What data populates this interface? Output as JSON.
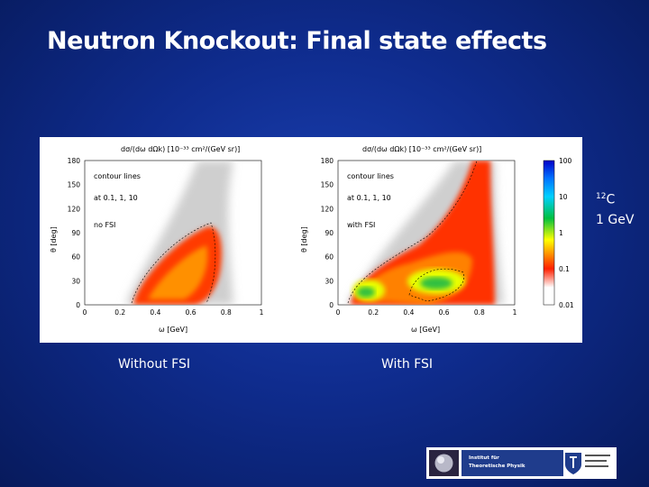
{
  "slide": {
    "title": "Neutron Knockout: Final state effects",
    "isotope_mass": "12",
    "isotope_symbol": "C",
    "energy": "1 GeV",
    "caption_left": "Without FSI",
    "caption_right": "With FSI"
  },
  "figure": {
    "panels": [
      {
        "heading": "dσ/(dω dΩk) [10⁻³³ cm²/(GeV sr)]",
        "legend": [
          "contour lines",
          "at 0.1, 1, 10",
          "no FSI"
        ]
      },
      {
        "heading": "dσ/(dω dΩk) [10⁻³³ cm²/(GeV sr)]",
        "legend": [
          "contour lines",
          "at 0.1, 1, 10",
          "with FSI"
        ]
      }
    ],
    "xlabel": "ω [GeV]",
    "ylabel": "θ [deg]",
    "xticks": [
      "0",
      "0.2",
      "0.4",
      "0.6",
      "0.8",
      "1"
    ],
    "yticks": [
      "0",
      "30",
      "60",
      "90",
      "120",
      "150",
      "180"
    ],
    "colorbar_ticks": [
      "100",
      "10",
      "1",
      "0.1",
      "0.01"
    ]
  },
  "chart_data": {
    "type": "heatmap",
    "xlabel": "ω [GeV]",
    "ylabel": "θ [deg]",
    "xlim": [
      0,
      1
    ],
    "ylim": [
      0,
      180
    ],
    "log_color_scale": true,
    "color_range": [
      0.01,
      100
    ],
    "contour_levels": [
      0.1,
      1,
      10
    ],
    "panels": [
      "no FSI",
      "with FSI"
    ]
  },
  "logo": {
    "line1": "Institut für",
    "line2": "Theoretische Physik"
  },
  "colors": {
    "background": "#0f2c8e",
    "heat_high": "#00b050",
    "heat_mid": "#ffff00",
    "heat_low": "#ff2a00"
  }
}
